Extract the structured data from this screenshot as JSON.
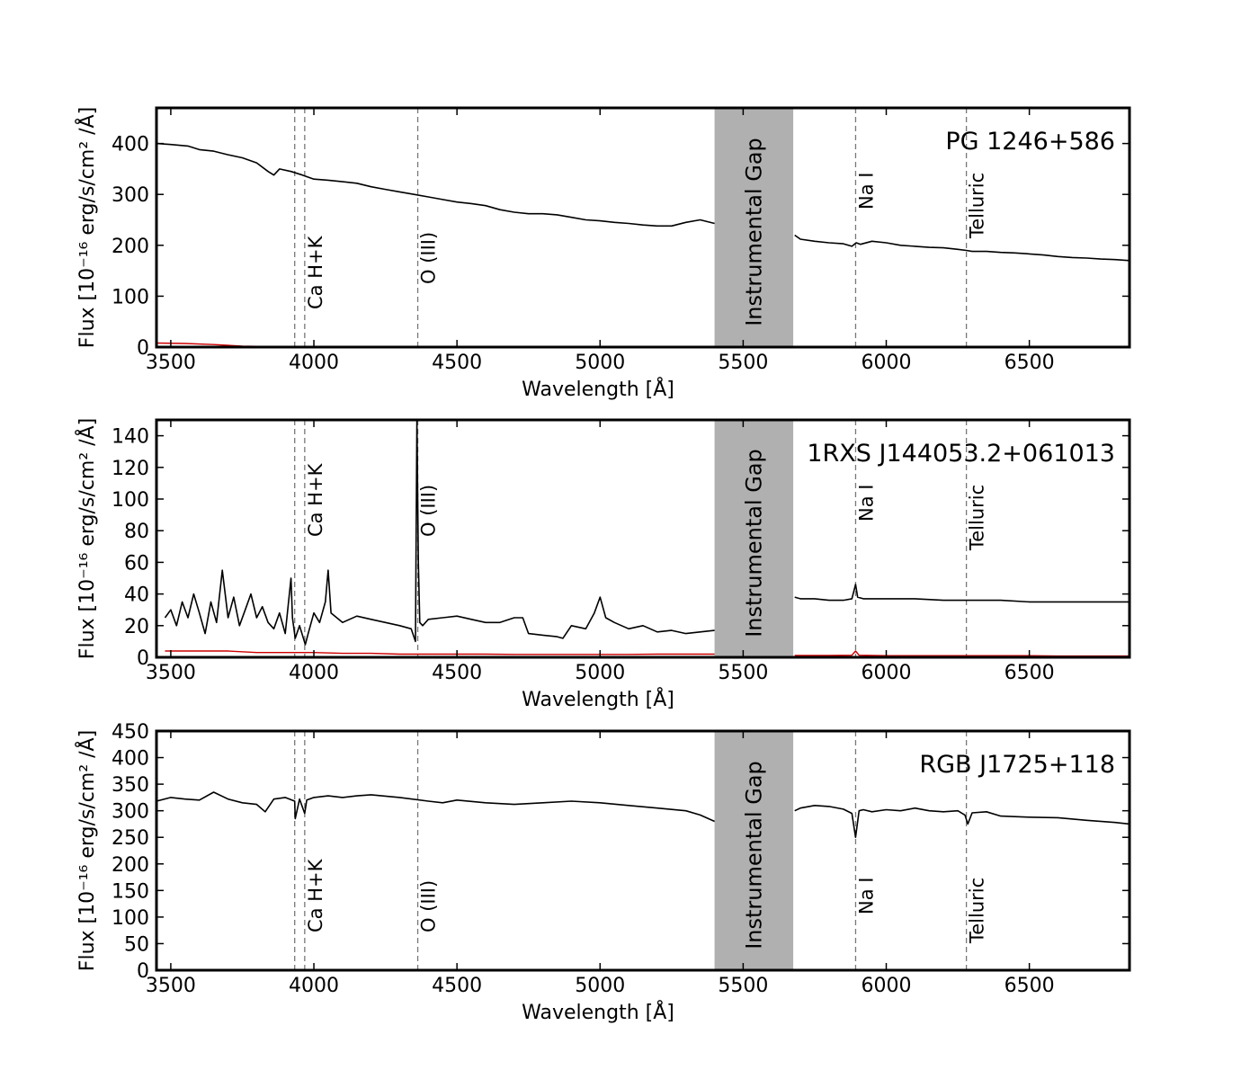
{
  "chart_data": [
    {
      "type": "line",
      "title": "PG 1246+586",
      "xlabel": "Wavelength [Å]",
      "ylabel": "Flux [10⁻¹⁶ erg/s/cm² /Å]",
      "xlim": [
        3450,
        6850
      ],
      "ylim": [
        0,
        470
      ],
      "xticks": [
        3500,
        4000,
        4500,
        5000,
        5500,
        6000,
        6500
      ],
      "yticks": [
        0,
        100,
        200,
        300,
        400
      ],
      "gap": {
        "x0": 5400,
        "x1": 5675,
        "label": "Instrumental Gap",
        "color": "#b0b0b0"
      },
      "lines": [
        {
          "x": 3933,
          "label": ""
        },
        {
          "x": 3968,
          "label": "Ca H+K"
        },
        {
          "x": 4363,
          "label": "O (III)"
        },
        {
          "x": 5893,
          "label": "Na I"
        },
        {
          "x": 6280,
          "label": "Telluric"
        }
      ],
      "series": [
        {
          "color": "#000000",
          "x": [
            3450,
            3500,
            3560,
            3600,
            3650,
            3700,
            3750,
            3800,
            3840,
            3860,
            3880,
            3920,
            3960,
            4000,
            4050,
            4100,
            4150,
            4200,
            4250,
            4300,
            4350,
            4400,
            4450,
            4500,
            4550,
            4600,
            4650,
            4700,
            4750,
            4800,
            4850,
            4900,
            4950,
            5000,
            5050,
            5100,
            5150,
            5200,
            5250,
            5300,
            5350,
            5400,
            null,
            5680,
            5700,
            5750,
            5800,
            5850,
            5880,
            5895,
            5910,
            5950,
            6000,
            6050,
            6100,
            6150,
            6200,
            6250,
            6280,
            6300,
            6350,
            6400,
            6450,
            6500,
            6550,
            6600,
            6650,
            6700,
            6750,
            6800,
            6850
          ],
          "y": [
            400,
            398,
            395,
            388,
            385,
            378,
            372,
            362,
            345,
            338,
            350,
            345,
            338,
            330,
            328,
            325,
            322,
            315,
            310,
            305,
            300,
            295,
            290,
            285,
            282,
            278,
            270,
            265,
            262,
            262,
            260,
            255,
            250,
            248,
            245,
            243,
            240,
            238,
            238,
            245,
            250,
            243,
            null,
            220,
            212,
            208,
            205,
            203,
            198,
            205,
            202,
            208,
            205,
            200,
            198,
            196,
            195,
            192,
            190,
            188,
            188,
            186,
            185,
            183,
            181,
            178,
            176,
            175,
            173,
            172,
            170
          ]
        },
        {
          "color": "#cc0000",
          "x": [
            3450,
            3550,
            3650,
            3750,
            3850
          ],
          "y": [
            8,
            7,
            5,
            2,
            1
          ]
        }
      ]
    },
    {
      "type": "line",
      "title": "1RXS J144053.2+061013",
      "xlabel": "Wavelength [Å]",
      "ylabel": "Flux [10⁻¹⁶ erg/s/cm² /Å]",
      "xlim": [
        3450,
        6850
      ],
      "ylim": [
        0,
        150
      ],
      "xticks": [
        3500,
        4000,
        4500,
        5000,
        5500,
        6000,
        6500
      ],
      "yticks": [
        0,
        20,
        40,
        60,
        80,
        100,
        120,
        140
      ],
      "gap": {
        "x0": 5400,
        "x1": 5675,
        "label": "Instrumental Gap",
        "color": "#b0b0b0"
      },
      "lines": [
        {
          "x": 3933,
          "label": ""
        },
        {
          "x": 3968,
          "label": "Ca H+K"
        },
        {
          "x": 4363,
          "label": "O (III)"
        },
        {
          "x": 5893,
          "label": "Na I"
        },
        {
          "x": 6280,
          "label": "Telluric"
        }
      ],
      "series": [
        {
          "color": "#000000",
          "x": [
            3480,
            3500,
            3520,
            3540,
            3560,
            3580,
            3600,
            3620,
            3640,
            3660,
            3680,
            3700,
            3720,
            3740,
            3760,
            3780,
            3800,
            3820,
            3840,
            3860,
            3880,
            3900,
            3920,
            3925,
            3935,
            3950,
            3970,
            3980,
            4000,
            4020,
            4040,
            4050,
            4060,
            4080,
            4100,
            4150,
            4200,
            4250,
            4300,
            4340,
            4355,
            4360,
            4365,
            4370,
            4380,
            4400,
            4450,
            4500,
            4550,
            4600,
            4650,
            4700,
            4730,
            4750,
            4800,
            4850,
            4870,
            4900,
            4950,
            4980,
            5000,
            5020,
            5050,
            5100,
            5150,
            5200,
            5250,
            5300,
            5350,
            5400,
            null,
            5680,
            5700,
            5750,
            5800,
            5850,
            5880,
            5893,
            5900,
            5920,
            5950,
            6000,
            6100,
            6200,
            6300,
            6400,
            6500,
            6600,
            6700,
            6850
          ],
          "y": [
            25,
            30,
            20,
            35,
            25,
            40,
            28,
            15,
            35,
            22,
            55,
            25,
            38,
            20,
            30,
            40,
            25,
            32,
            22,
            18,
            28,
            15,
            50,
            25,
            12,
            20,
            8,
            15,
            28,
            22,
            35,
            55,
            28,
            25,
            22,
            26,
            24,
            22,
            20,
            18,
            10,
            150,
            60,
            22,
            20,
            24,
            25,
            26,
            24,
            22,
            22,
            25,
            25,
            15,
            14,
            13,
            12,
            20,
            18,
            28,
            38,
            25,
            22,
            18,
            20,
            16,
            17,
            15,
            16,
            17,
            null,
            38,
            37,
            37,
            36,
            36,
            37,
            46,
            38,
            37,
            37,
            37,
            37,
            36,
            36,
            36,
            35,
            35,
            35,
            35
          ]
        },
        {
          "color": "#cc0000",
          "x": [
            3480,
            3600,
            3700,
            3800,
            3900,
            4000,
            4100,
            4200,
            4300,
            4400,
            4500,
            4600,
            4700,
            4800,
            4900,
            5000,
            5100,
            5200,
            5300,
            5400,
            null,
            5680,
            5800,
            5880,
            5893,
            5905,
            6000,
            6100,
            6200,
            6300,
            6400,
            6500,
            6600,
            6700,
            6850
          ],
          "y": [
            4,
            4,
            4,
            3,
            3,
            3,
            2.5,
            2.5,
            2,
            2,
            2,
            2,
            1.8,
            1.8,
            1.8,
            1.8,
            1.8,
            2,
            2,
            2,
            null,
            1.2,
            1.2,
            1.3,
            4,
            1.3,
            1,
            1,
            1,
            1,
            1,
            1,
            0.8,
            0.8,
            0.8
          ]
        }
      ]
    },
    {
      "type": "line",
      "title": "RGB J1725+118",
      "xlabel": "Wavelength [Å]",
      "ylabel": "Flux [10⁻¹⁶ erg/s/cm² /Å]",
      "xlim": [
        3450,
        6850
      ],
      "ylim": [
        0,
        450
      ],
      "xticks": [
        3500,
        4000,
        4500,
        5000,
        5500,
        6000,
        6500
      ],
      "yticks": [
        0,
        50,
        100,
        150,
        200,
        250,
        300,
        350,
        400,
        450
      ],
      "gap": {
        "x0": 5400,
        "x1": 5675,
        "label": "Instrumental Gap",
        "color": "#b0b0b0"
      },
      "lines": [
        {
          "x": 3933,
          "label": ""
        },
        {
          "x": 3968,
          "label": "Ca H+K"
        },
        {
          "x": 4363,
          "label": "O (III)"
        },
        {
          "x": 5893,
          "label": "Na I"
        },
        {
          "x": 6280,
          "label": "Telluric"
        }
      ],
      "series": [
        {
          "color": "#000000",
          "x": [
            3450,
            3500,
            3550,
            3600,
            3650,
            3700,
            3750,
            3800,
            3830,
            3860,
            3900,
            3933,
            3935,
            3950,
            3968,
            3975,
            4000,
            4050,
            4100,
            4150,
            4200,
            4300,
            4400,
            4450,
            4500,
            4600,
            4700,
            4800,
            4900,
            5000,
            5100,
            5200,
            5300,
            5350,
            5400,
            null,
            5680,
            5700,
            5750,
            5800,
            5850,
            5880,
            5893,
            5905,
            5920,
            5950,
            6000,
            6050,
            6100,
            6150,
            6200,
            6250,
            6275,
            6285,
            6300,
            6350,
            6400,
            6500,
            6600,
            6700,
            6800,
            6850
          ],
          "y": [
            318,
            325,
            322,
            320,
            335,
            322,
            315,
            312,
            298,
            322,
            325,
            318,
            285,
            322,
            295,
            320,
            325,
            328,
            325,
            328,
            330,
            325,
            318,
            315,
            320,
            315,
            312,
            315,
            318,
            315,
            310,
            305,
            300,
            292,
            280,
            null,
            300,
            305,
            310,
            308,
            303,
            295,
            250,
            300,
            302,
            298,
            302,
            300,
            305,
            300,
            298,
            300,
            292,
            275,
            296,
            298,
            290,
            288,
            287,
            282,
            278,
            275
          ]
        }
      ]
    }
  ]
}
